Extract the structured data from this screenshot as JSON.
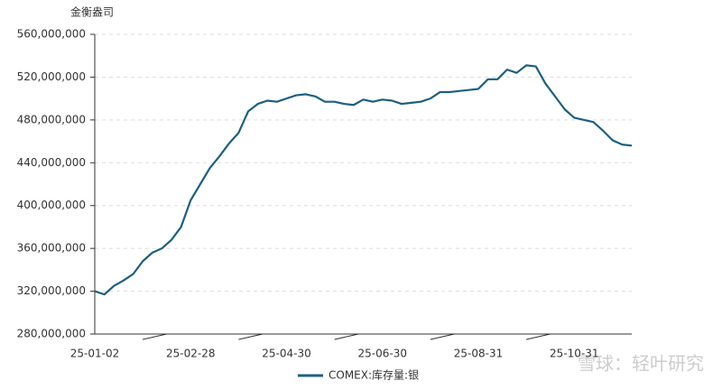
{
  "chart_data": {
    "type": "line",
    "y_unit": "金衡盎司",
    "categories": [
      "25-01-02",
      null,
      null,
      null,
      null,
      null,
      null,
      null,
      null,
      null,
      "25-02-28",
      null,
      null,
      null,
      null,
      null,
      null,
      null,
      null,
      null,
      "25-04-30",
      null,
      null,
      null,
      null,
      null,
      null,
      null,
      null,
      null,
      "25-06-30",
      null,
      null,
      null,
      null,
      null,
      null,
      null,
      null,
      null,
      "25-08-31",
      null,
      null,
      null,
      null,
      null,
      null,
      null,
      null,
      null,
      "25-10-31",
      null,
      null,
      null,
      null,
      null,
      null
    ],
    "series": [
      {
        "name": "COMEX:库存量:银",
        "color": "#1d5f80",
        "values": [
          320000000,
          317000000,
          325000000,
          330000000,
          336000000,
          348000000,
          356000000,
          360000000,
          368000000,
          380000000,
          405000000,
          420000000,
          435000000,
          446000000,
          458000000,
          468000000,
          488000000,
          495000000,
          498000000,
          497000000,
          500000000,
          503000000,
          504000000,
          502000000,
          497000000,
          497000000,
          495000000,
          494000000,
          499000000,
          497000000,
          499000000,
          498000000,
          495000000,
          496000000,
          497000000,
          500000000,
          506000000,
          506000000,
          507000000,
          508000000,
          509000000,
          518000000,
          518000000,
          527000000,
          524000000,
          531000000,
          530000000,
          514000000,
          502000000,
          490000000,
          482000000,
          480000000,
          478000000,
          470000000,
          461000000,
          457000000,
          456000000
        ]
      }
    ],
    "ylim": [
      280000000,
      560000000
    ],
    "yticks": [
      {
        "value": 280000000,
        "label": "280,000,000"
      },
      {
        "value": 320000000,
        "label": "320,000,000"
      },
      {
        "value": 360000000,
        "label": "360,000,000"
      },
      {
        "value": 400000000,
        "label": "400,000,000"
      },
      {
        "value": 440000000,
        "label": "440,000,000"
      },
      {
        "value": 480000000,
        "label": "480,000,000"
      },
      {
        "value": 520000000,
        "label": "520,000,000"
      },
      {
        "value": 560000000,
        "label": "560,000,000"
      }
    ],
    "grid": true,
    "watermark": "雪球：轻叶研究"
  }
}
